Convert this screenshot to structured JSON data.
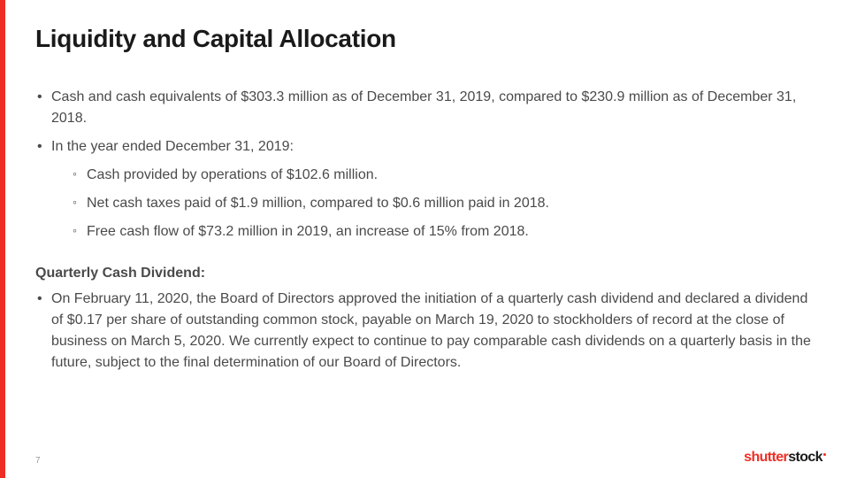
{
  "slide": {
    "title": "Liquidity and Capital Allocation",
    "page_number": "7",
    "accent_color": "#ee2e24",
    "text_color": "#4a4a4a",
    "title_color": "#1a1a1a",
    "background_color": "#ffffff",
    "bullets": {
      "b0": "Cash and cash equivalents of $303.3 million as of December 31, 2019, compared to $230.9 million as of December 31, 2018.",
      "b1": "In the year ended December 31, 2019:",
      "b1_sub": {
        "s0": "Cash provided by operations of $102.6 million.",
        "s1": "Net cash taxes paid of $1.9 million, compared to $0.6 million paid in 2018.",
        "s2": "Free cash flow of $73.2 million in 2019, an increase of 15% from 2018."
      }
    },
    "subheading": "Quarterly Cash Dividend",
    "subheading_suffix": ":",
    "bullets2": {
      "b0": "On February 11, 2020, the Board of Directors approved the initiation of a quarterly cash dividend and declared a dividend of $0.17 per share of outstanding common stock, payable on March 19, 2020 to stockholders of record at the close of business on March 5, 2020. We currently expect to continue to pay comparable cash dividends on a quarterly basis in the future, subject to the final determination of our Board of Directors."
    },
    "logo": {
      "part1": "shutter",
      "part2": "stock"
    }
  }
}
